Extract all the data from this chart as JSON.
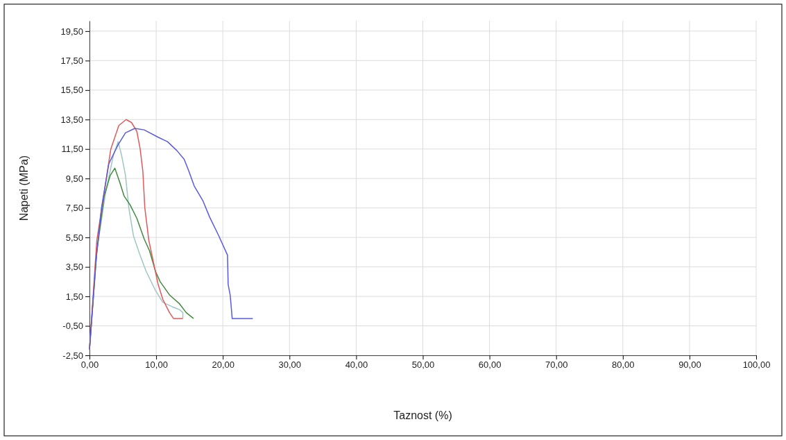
{
  "chart_data": {
    "type": "line",
    "xlabel": "Taznost (%)",
    "ylabel": "Napeti (MPa)",
    "xlim": [
      0,
      100
    ],
    "ylim": [
      -2.5,
      20.2
    ],
    "xticks": [
      {
        "value": 0,
        "label": "0,00"
      },
      {
        "value": 10,
        "label": "10,00"
      },
      {
        "value": 20,
        "label": "20,00"
      },
      {
        "value": 30,
        "label": "30,00"
      },
      {
        "value": 40,
        "label": "40,00"
      },
      {
        "value": 50,
        "label": "50,00"
      },
      {
        "value": 60,
        "label": "60,00"
      },
      {
        "value": 70,
        "label": "70,00"
      },
      {
        "value": 80,
        "label": "80,00"
      },
      {
        "value": 90,
        "label": "90,00"
      },
      {
        "value": 100,
        "label": "100,00"
      }
    ],
    "yticks": [
      {
        "value": -2.5,
        "label": "-2,50"
      },
      {
        "value": -0.5,
        "label": "-0,50"
      },
      {
        "value": 1.5,
        "label": "1,50"
      },
      {
        "value": 3.5,
        "label": "3,50"
      },
      {
        "value": 5.5,
        "label": "5,50"
      },
      {
        "value": 7.5,
        "label": "7,50"
      },
      {
        "value": 9.5,
        "label": "9,50"
      },
      {
        "value": 11.5,
        "label": "11,50"
      },
      {
        "value": 13.5,
        "label": "13,50"
      },
      {
        "value": 15.5,
        "label": "15,50"
      },
      {
        "value": 17.5,
        "label": "17,50"
      },
      {
        "value": 19.5,
        "label": "19,50"
      }
    ],
    "grid": true,
    "marker": "none",
    "line_style": "solid",
    "series": [
      {
        "color": "#9cc7c4",
        "x": [
          0,
          1.1,
          2.4,
          3.6,
          4.3,
          4.8,
          5.4,
          5.9,
          6.6,
          7.5,
          8.5,
          9.9,
          11,
          12.4,
          13.5,
          14,
          14
        ],
        "values": [
          -2.1,
          4.6,
          8.5,
          11.1,
          12,
          11.1,
          9.7,
          7.5,
          5.6,
          4.4,
          3.2,
          1.9,
          1.1,
          0.8,
          0.6,
          0.4,
          0
        ]
      },
      {
        "color": "#3f8a3f",
        "x": [
          0,
          1.1,
          2.2,
          3.1,
          3.8,
          4.5,
          5.2,
          6.1,
          7.1,
          8.2,
          9,
          9.9,
          10.6,
          12,
          13.5,
          14.5,
          15.6
        ],
        "values": [
          -2.1,
          4.6,
          8.3,
          9.7,
          10.2,
          9.3,
          8.3,
          7.7,
          6.8,
          5.4,
          4.6,
          3.2,
          2.5,
          1.6,
          1,
          0.4,
          0
        ]
      },
      {
        "color": "#e05a5a",
        "x": [
          0,
          1.1,
          3.2,
          4.4,
          5.5,
          6.3,
          7.1,
          7.6,
          8,
          8.3,
          8.9,
          9.6,
          10.3,
          11,
          12,
          12.6,
          14
        ],
        "values": [
          -2.1,
          5.3,
          11.5,
          13.1,
          13.5,
          13.3,
          12.7,
          11.5,
          10,
          7.5,
          5.3,
          3.8,
          2.3,
          1.3,
          0.4,
          0,
          0
        ]
      },
      {
        "color": "#5a5ae0",
        "x": [
          0,
          0.95,
          1.8,
          2.9,
          4.3,
          5.4,
          6.8,
          8.2,
          10.3,
          11.7,
          13.1,
          14.2,
          14.9,
          15.7,
          17,
          18,
          19.4,
          20.7,
          20.8,
          21.1,
          21.2,
          21.4,
          24.5
        ],
        "values": [
          -2.1,
          3.8,
          7.5,
          10.5,
          11.8,
          12.6,
          12.9,
          12.8,
          12.3,
          12,
          11.4,
          10.8,
          10,
          9,
          8,
          6.9,
          5.6,
          4.3,
          2.3,
          1.6,
          1.1,
          0,
          0
        ]
      }
    ]
  }
}
